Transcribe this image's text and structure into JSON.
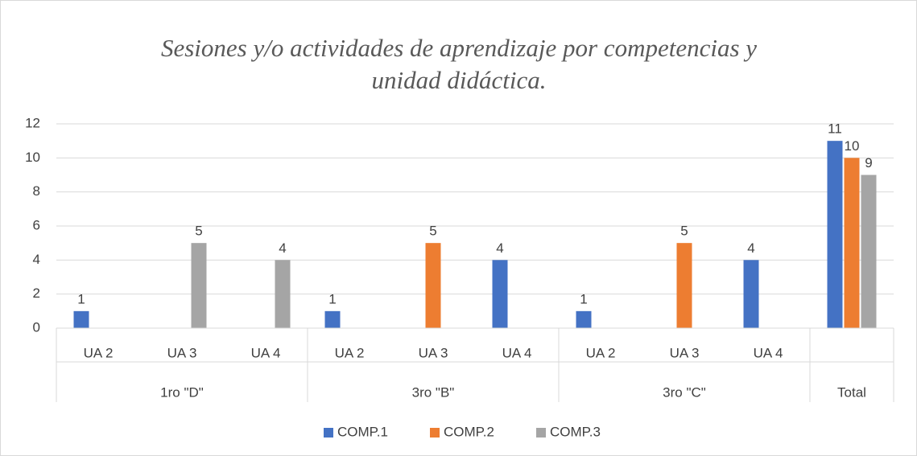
{
  "chart_data": {
    "type": "bar",
    "title": "Sesiones y/o actividades de aprendizaje por competencias y unidad didáctica.",
    "categories": [
      "UA 2",
      "UA 3",
      "UA 4",
      "UA 2",
      "UA 3",
      "UA 4",
      "UA 2",
      "UA 3",
      "UA 4",
      null
    ],
    "category_groups": [
      {
        "label": "1ro \"D\"",
        "size": 3
      },
      {
        "label": "3ro \"B\"",
        "size": 3
      },
      {
        "label": "3ro \"C\"",
        "size": 3
      },
      {
        "label": "Total",
        "size": 1
      }
    ],
    "series": [
      {
        "name": "COMP.1",
        "color": "#4472c4",
        "values": [
          1,
          null,
          null,
          1,
          null,
          4,
          1,
          null,
          4,
          11
        ]
      },
      {
        "name": "COMP.2",
        "color": "#ed7d31",
        "values": [
          null,
          null,
          null,
          null,
          5,
          null,
          null,
          5,
          null,
          10
        ]
      },
      {
        "name": "COMP.3",
        "color": "#a5a5a5",
        "values": [
          null,
          5,
          4,
          null,
          null,
          null,
          null,
          null,
          null,
          9
        ]
      }
    ],
    "ylim": [
      0,
      12
    ],
    "yticks": [
      0,
      2,
      4,
      6,
      8,
      10,
      12
    ],
    "grid": true,
    "legend": "bottom"
  }
}
